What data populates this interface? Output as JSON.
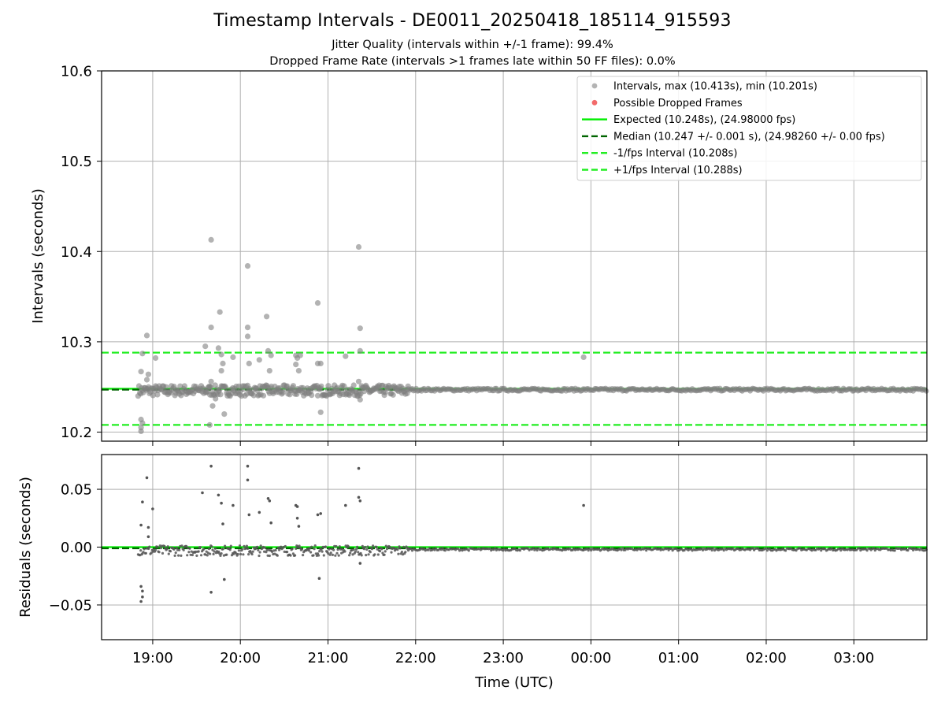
{
  "chart_data": [
    {
      "type": "scatter",
      "title": "Timestamp Intervals - DE0011_20250418_185114_915593",
      "subtitle_1": "Jitter Quality (intervals within +/-1 frame): 99.4%",
      "subtitle_2": "Dropped Frame Rate (intervals >1 frames late within 50 FF files): 0.0%",
      "xlabel": "Time (UTC)",
      "ylabel": "Intervals (seconds)",
      "xlim": [
        "18:25",
        "03:50"
      ],
      "ylim": [
        10.19,
        10.6
      ],
      "yticks": [
        "10.2",
        "10.3",
        "10.4",
        "10.5",
        "10.6"
      ],
      "xticks": [
        "19:00",
        "20:00",
        "21:00",
        "22:00",
        "23:00",
        "00:00",
        "01:00",
        "02:00",
        "03:00"
      ],
      "grid": true,
      "legend_position": "top-right",
      "legend": [
        "Intervals, max (10.413s), min (10.201s)",
        "Possible Dropped Frames",
        "Expected (10.248s), (24.98000 fps)",
        "Median (10.247 +/- 0.001 s), (24.98260 +/- 0.00 fps)",
        "-1/fps Interval (10.208s)",
        "+1/fps Interval (10.288s)"
      ],
      "expected": 10.248,
      "median": 10.247,
      "minus_interval": 10.208,
      "plus_interval": 10.288,
      "colors": {
        "intervals": "#808080",
        "dropped": "#f05050",
        "expected": "#00ee00",
        "median": "#006400",
        "bounds": "#22ee22"
      },
      "baseline_segments": [
        {
          "x_start": "18:50",
          "x_end": "21:55",
          "y": 10.246
        },
        {
          "x_start": "21:55",
          "x_end": "03:50",
          "y": 10.247
        }
      ],
      "outliers": [
        {
          "x": "18:52",
          "y": 10.214
        },
        {
          "x": "18:52",
          "y": 10.201
        },
        {
          "x": "18:52",
          "y": 10.205
        },
        {
          "x": "18:53",
          "y": 10.21
        },
        {
          "x": "18:52",
          "y": 10.267
        },
        {
          "x": "18:53",
          "y": 10.287
        },
        {
          "x": "18:56",
          "y": 10.307
        },
        {
          "x": "18:57",
          "y": 10.264
        },
        {
          "x": "18:56",
          "y": 10.258
        },
        {
          "x": "19:02",
          "y": 10.282
        },
        {
          "x": "19:36",
          "y": 10.295
        },
        {
          "x": "19:39",
          "y": 10.25
        },
        {
          "x": "19:40",
          "y": 10.413
        },
        {
          "x": "19:40",
          "y": 10.316
        },
        {
          "x": "19:40",
          "y": 10.256
        },
        {
          "x": "19:41",
          "y": 10.229
        },
        {
          "x": "19:39",
          "y": 10.208
        },
        {
          "x": "19:43",
          "y": 10.237
        },
        {
          "x": "19:45",
          "y": 10.293
        },
        {
          "x": "19:46",
          "y": 10.333
        },
        {
          "x": "19:47",
          "y": 10.268
        },
        {
          "x": "19:48",
          "y": 10.276
        },
        {
          "x": "19:49",
          "y": 10.22
        },
        {
          "x": "19:47",
          "y": 10.286
        },
        {
          "x": "19:55",
          "y": 10.283
        },
        {
          "x": "20:05",
          "y": 10.384
        },
        {
          "x": "20:05",
          "y": 10.316
        },
        {
          "x": "20:05",
          "y": 10.306
        },
        {
          "x": "20:06",
          "y": 10.276
        },
        {
          "x": "20:13",
          "y": 10.28
        },
        {
          "x": "20:18",
          "y": 10.328
        },
        {
          "x": "20:19",
          "y": 10.29
        },
        {
          "x": "20:20",
          "y": 10.268
        },
        {
          "x": "20:21",
          "y": 10.285
        },
        {
          "x": "20:38",
          "y": 10.285
        },
        {
          "x": "20:39",
          "y": 10.282
        },
        {
          "x": "20:38",
          "y": 10.275
        },
        {
          "x": "20:40",
          "y": 10.268
        },
        {
          "x": "20:41",
          "y": 10.285
        },
        {
          "x": "20:53",
          "y": 10.343
        },
        {
          "x": "20:53",
          "y": 10.276
        },
        {
          "x": "20:55",
          "y": 10.276
        },
        {
          "x": "20:55",
          "y": 10.222
        },
        {
          "x": "21:12",
          "y": 10.284
        },
        {
          "x": "21:21",
          "y": 10.405
        },
        {
          "x": "21:22",
          "y": 10.315
        },
        {
          "x": "21:22",
          "y": 10.29
        },
        {
          "x": "21:21",
          "y": 10.256
        },
        {
          "x": "21:22",
          "y": 10.236
        },
        {
          "x": "23:55",
          "y": 10.283
        }
      ]
    },
    {
      "type": "scatter",
      "xlabel": "Time (UTC)",
      "ylabel": "Residuals (seconds)",
      "xlim": [
        "18:25",
        "03:50"
      ],
      "ylim": [
        -0.08,
        0.08
      ],
      "yticks": [
        "−0.05",
        "0.00",
        "0.05"
      ],
      "xticks": [
        "19:00",
        "20:00",
        "21:00",
        "22:00",
        "23:00",
        "00:00",
        "01:00",
        "02:00",
        "03:00"
      ],
      "grid": true,
      "zero_line": 0.0,
      "median_residual": -0.001,
      "outliers": [
        {
          "x": "18:52",
          "y": -0.034
        },
        {
          "x": "18:52",
          "y": -0.047
        },
        {
          "x": "18:53",
          "y": -0.043
        },
        {
          "x": "18:53",
          "y": -0.038
        },
        {
          "x": "18:52",
          "y": 0.019
        },
        {
          "x": "18:53",
          "y": 0.039
        },
        {
          "x": "18:56",
          "y": 0.06
        },
        {
          "x": "18:57",
          "y": 0.017
        },
        {
          "x": "18:57",
          "y": 0.009
        },
        {
          "x": "19:00",
          "y": 0.033
        },
        {
          "x": "19:34",
          "y": 0.047
        },
        {
          "x": "19:40",
          "y": 0.07
        },
        {
          "x": "19:40",
          "y": -0.039
        },
        {
          "x": "19:45",
          "y": 0.045
        },
        {
          "x": "19:47",
          "y": 0.038
        },
        {
          "x": "19:48",
          "y": 0.02
        },
        {
          "x": "19:49",
          "y": -0.028
        },
        {
          "x": "19:55",
          "y": 0.036
        },
        {
          "x": "20:05",
          "y": 0.07
        },
        {
          "x": "20:05",
          "y": 0.058
        },
        {
          "x": "20:06",
          "y": 0.028
        },
        {
          "x": "20:13",
          "y": 0.03
        },
        {
          "x": "20:19",
          "y": 0.042
        },
        {
          "x": "20:20",
          "y": 0.04
        },
        {
          "x": "20:21",
          "y": 0.021
        },
        {
          "x": "20:38",
          "y": 0.036
        },
        {
          "x": "20:39",
          "y": 0.035
        },
        {
          "x": "20:39",
          "y": 0.025
        },
        {
          "x": "20:40",
          "y": 0.018
        },
        {
          "x": "20:53",
          "y": 0.028
        },
        {
          "x": "20:55",
          "y": 0.029
        },
        {
          "x": "20:54",
          "y": -0.027
        },
        {
          "x": "21:12",
          "y": 0.036
        },
        {
          "x": "21:21",
          "y": 0.068
        },
        {
          "x": "21:21",
          "y": 0.043
        },
        {
          "x": "21:22",
          "y": 0.04
        },
        {
          "x": "21:22",
          "y": -0.014
        },
        {
          "x": "23:55",
          "y": 0.036
        }
      ]
    }
  ]
}
